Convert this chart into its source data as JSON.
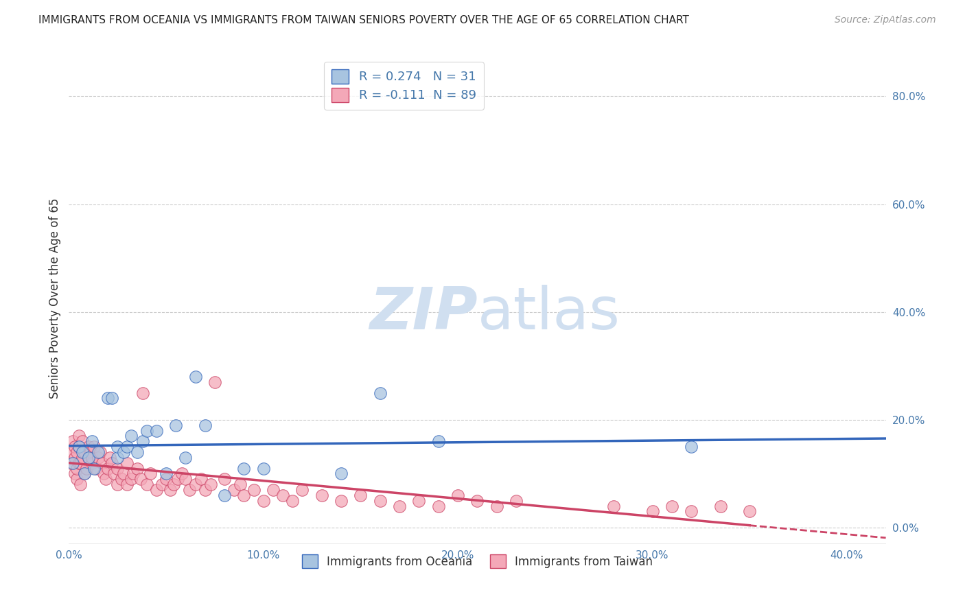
{
  "title": "IMMIGRANTS FROM OCEANIA VS IMMIGRANTS FROM TAIWAN SENIORS POVERTY OVER THE AGE OF 65 CORRELATION CHART",
  "source": "Source: ZipAtlas.com",
  "ylabel": "Seniors Poverty Over the Age of 65",
  "xlim": [
    0.0,
    0.42
  ],
  "ylim": [
    -0.03,
    0.88
  ],
  "xticks": [
    0.0,
    0.1,
    0.2,
    0.3,
    0.4
  ],
  "xtick_labels": [
    "0.0%",
    "10.0%",
    "20.0%",
    "30.0%",
    "40.0%"
  ],
  "yticks_right": [
    0.0,
    0.2,
    0.4,
    0.6,
    0.8
  ],
  "ytick_labels_right": [
    "0.0%",
    "20.0%",
    "40.0%",
    "60.0%",
    "80.0%"
  ],
  "series1_label": "Immigrants from Oceania",
  "series2_label": "Immigrants from Taiwan",
  "series1_color": "#a8c4e0",
  "series2_color": "#f4a8b8",
  "series1_R": 0.274,
  "series1_N": 31,
  "series2_R": -0.111,
  "series2_N": 89,
  "trendline1_color": "#3366bb",
  "trendline2_color": "#cc4466",
  "watermark_zip": "ZIP",
  "watermark_atlas": "atlas",
  "watermark_color": "#d0dff0",
  "grid_color": "#cccccc",
  "oceania_x": [
    0.002,
    0.005,
    0.007,
    0.008,
    0.01,
    0.012,
    0.013,
    0.015,
    0.02,
    0.022,
    0.025,
    0.025,
    0.028,
    0.03,
    0.032,
    0.035,
    0.038,
    0.04,
    0.045,
    0.05,
    0.055,
    0.06,
    0.065,
    0.07,
    0.08,
    0.09,
    0.1,
    0.14,
    0.16,
    0.19,
    0.32
  ],
  "oceania_y": [
    0.12,
    0.15,
    0.14,
    0.1,
    0.13,
    0.16,
    0.11,
    0.14,
    0.24,
    0.24,
    0.13,
    0.15,
    0.14,
    0.15,
    0.17,
    0.14,
    0.16,
    0.18,
    0.18,
    0.1,
    0.19,
    0.13,
    0.28,
    0.19,
    0.06,
    0.11,
    0.11,
    0.1,
    0.25,
    0.16,
    0.15
  ],
  "taiwan_x": [
    0.001,
    0.002,
    0.002,
    0.003,
    0.003,
    0.003,
    0.004,
    0.004,
    0.004,
    0.005,
    0.005,
    0.005,
    0.006,
    0.006,
    0.007,
    0.007,
    0.008,
    0.008,
    0.009,
    0.01,
    0.01,
    0.011,
    0.012,
    0.012,
    0.013,
    0.014,
    0.015,
    0.016,
    0.017,
    0.018,
    0.019,
    0.02,
    0.021,
    0.022,
    0.023,
    0.025,
    0.025,
    0.027,
    0.028,
    0.03,
    0.03,
    0.032,
    0.033,
    0.035,
    0.037,
    0.038,
    0.04,
    0.042,
    0.045,
    0.048,
    0.05,
    0.052,
    0.054,
    0.056,
    0.058,
    0.06,
    0.062,
    0.065,
    0.068,
    0.07,
    0.073,
    0.075,
    0.08,
    0.085,
    0.088,
    0.09,
    0.095,
    0.1,
    0.105,
    0.11,
    0.115,
    0.12,
    0.13,
    0.14,
    0.15,
    0.16,
    0.17,
    0.18,
    0.19,
    0.2,
    0.21,
    0.22,
    0.23,
    0.28,
    0.3,
    0.31,
    0.32,
    0.335,
    0.35
  ],
  "taiwan_y": [
    0.12,
    0.14,
    0.16,
    0.1,
    0.13,
    0.15,
    0.09,
    0.11,
    0.14,
    0.12,
    0.15,
    0.17,
    0.08,
    0.12,
    0.13,
    0.16,
    0.1,
    0.14,
    0.11,
    0.13,
    0.15,
    0.14,
    0.12,
    0.13,
    0.15,
    0.11,
    0.13,
    0.14,
    0.12,
    0.1,
    0.09,
    0.11,
    0.13,
    0.12,
    0.1,
    0.08,
    0.11,
    0.09,
    0.1,
    0.08,
    0.12,
    0.09,
    0.1,
    0.11,
    0.09,
    0.25,
    0.08,
    0.1,
    0.07,
    0.08,
    0.09,
    0.07,
    0.08,
    0.09,
    0.1,
    0.09,
    0.07,
    0.08,
    0.09,
    0.07,
    0.08,
    0.27,
    0.09,
    0.07,
    0.08,
    0.06,
    0.07,
    0.05,
    0.07,
    0.06,
    0.05,
    0.07,
    0.06,
    0.05,
    0.06,
    0.05,
    0.04,
    0.05,
    0.04,
    0.06,
    0.05,
    0.04,
    0.05,
    0.04,
    0.03,
    0.04,
    0.03,
    0.04,
    0.03
  ]
}
